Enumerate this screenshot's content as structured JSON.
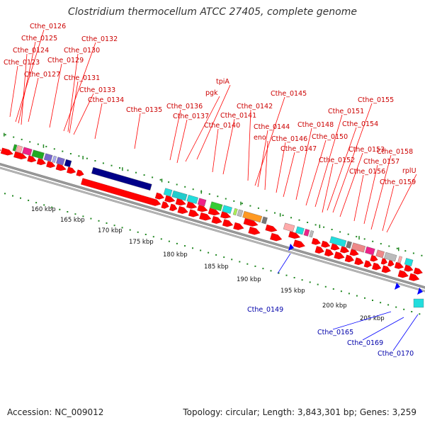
{
  "title": "Clostridium thermocellum ATCC 27405, complete genome",
  "footer": {
    "accession": "Accession: NC_009012",
    "stats": "Topology: circular; Length: 3,843,301 bp; Genes: 3,259"
  },
  "colors": {
    "forward_gene": "#ff0000",
    "reverse_gene": "#0000ff",
    "backbone": "#999999",
    "tick": "#228822",
    "forward_label": "#cc0000",
    "reverse_label": "#0000aa"
  },
  "scale_labels": [
    "160 kbp",
    "165 kbp",
    "170 kbp",
    "175 kbp",
    "180 kbp",
    "185 kbp",
    "190 kbp",
    "195 kbp",
    "200 kbp",
    "205 kbp"
  ],
  "forward_labels": [
    "Cthe_0126",
    "Cthe_0125",
    "Cthe_0124",
    "Cthe_0123",
    "Cthe_0127",
    "Cthe_0132",
    "Cthe_0130",
    "Cthe_0129",
    "Cthe_0131",
    "Cthe_0133",
    "Cthe_0134",
    "Cthe_0135",
    "tpiA",
    "pgk",
    "Cthe_0136",
    "Cthe_0137",
    "Cthe_0140",
    "Cthe_0141",
    "Cthe_0142",
    "Cthe_0145",
    "Cthe_0144",
    "eno",
    "Cthe_0146",
    "Cthe_0147",
    "Cthe_0148",
    "Cthe_0150",
    "Cthe_0151",
    "Cthe_0155",
    "Cthe_0154",
    "Cthe_0153",
    "Cthe_0152",
    "Cthe_0156",
    "Cthe_0157",
    "Cthe_0158",
    "rplU",
    "Cthe_0159"
  ],
  "reverse_labels": [
    "Cthe_0149",
    "Cthe_0165",
    "Cthe_0169",
    "Cthe_0170"
  ]
}
